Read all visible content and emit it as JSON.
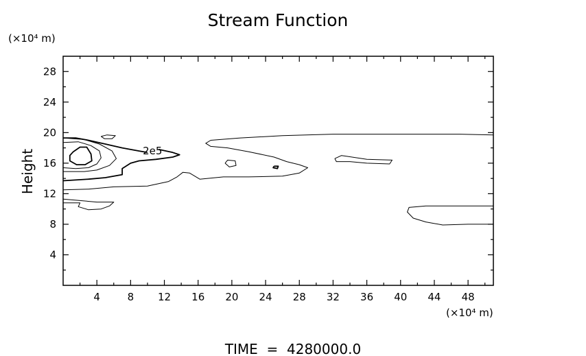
{
  "chart_data": {
    "type": "contour",
    "title": "Stream Function",
    "xlabel": "",
    "ylabel": "Height",
    "x_scale_label": "(×10⁴ m)",
    "y_scale_label": "(×10⁴ m)",
    "xlim": [
      0,
      51
    ],
    "ylim": [
      0,
      30
    ],
    "x_ticks": [
      4,
      8,
      12,
      16,
      20,
      24,
      28,
      32,
      36,
      40,
      44,
      48
    ],
    "y_ticks": [
      4,
      8,
      12,
      16,
      20,
      24,
      28
    ],
    "grid": false,
    "footer": "TIME  =  4280000.0",
    "contour_labels": [
      {
        "text": "2e5",
        "x": 10.6,
        "y": 17.6
      }
    ],
    "contours": [
      {
        "name": "thick-level",
        "width": 1.8,
        "points": [
          [
            0,
            19.3
          ],
          [
            1.5,
            19.3
          ],
          [
            3,
            19
          ],
          [
            5,
            18.5
          ],
          [
            7,
            18
          ],
          [
            9,
            17.6
          ],
          [
            10,
            17.4
          ]
        ]
      },
      {
        "name": "thick-level-b",
        "width": 1.8,
        "points": [
          [
            11.3,
            17.8
          ],
          [
            13,
            17.4
          ],
          [
            13.8,
            17.1
          ],
          [
            13,
            16.8
          ],
          [
            11,
            16.5
          ],
          [
            9,
            16.3
          ],
          [
            8,
            16
          ],
          [
            7,
            15.3
          ],
          [
            7,
            14.5
          ],
          [
            5,
            14.1
          ],
          [
            3,
            13.9
          ],
          [
            0,
            13.7
          ]
        ]
      },
      {
        "name": "inner-cell",
        "width": 1.8,
        "points": [
          [
            1.2,
            17.5
          ],
          [
            2,
            18.1
          ],
          [
            2.8,
            18.1
          ],
          [
            3.3,
            17.2
          ],
          [
            3.4,
            16.3
          ],
          [
            2.6,
            15.8
          ],
          [
            1.6,
            15.8
          ],
          [
            0.8,
            16.3
          ],
          [
            0.8,
            17
          ],
          [
            1.2,
            17.5
          ]
        ]
      },
      {
        "name": "level-a",
        "width": 1,
        "points": [
          [
            0,
            18.7
          ],
          [
            1.8,
            18.8
          ],
          [
            3.3,
            18.3
          ],
          [
            4.3,
            17.6
          ],
          [
            4.5,
            16.7
          ],
          [
            4,
            15.9
          ],
          [
            3,
            15.4
          ],
          [
            1.5,
            15.3
          ],
          [
            0,
            15.4
          ]
        ]
      },
      {
        "name": "level-b",
        "width": 1,
        "points": [
          [
            0,
            19.3
          ],
          [
            2.5,
            19.1
          ],
          [
            4.3,
            18.5
          ],
          [
            5.8,
            17.6
          ],
          [
            6.3,
            16.6
          ],
          [
            5.5,
            15.7
          ],
          [
            4,
            15.1
          ],
          [
            2.5,
            14.9
          ],
          [
            0,
            14.9
          ]
        ]
      },
      {
        "name": "small-top",
        "width": 1,
        "points": [
          [
            4.5,
            19.5
          ],
          [
            5.2,
            19.7
          ],
          [
            6.2,
            19.6
          ],
          [
            5.8,
            19.2
          ],
          [
            4.9,
            19.2
          ],
          [
            4.5,
            19.5
          ]
        ]
      },
      {
        "name": "band-upper",
        "width": 1,
        "points": [
          [
            51,
            19.7
          ],
          [
            47,
            19.8
          ],
          [
            40,
            19.8
          ],
          [
            32,
            19.8
          ],
          [
            26,
            19.6
          ],
          [
            21,
            19.3
          ],
          [
            17.5,
            19
          ],
          [
            16.9,
            18.6
          ],
          [
            17.5,
            18.2
          ],
          [
            19.5,
            18
          ],
          [
            22,
            17.5
          ],
          [
            25,
            16.8
          ],
          [
            26.5,
            16.2
          ],
          [
            28,
            15.8
          ],
          [
            29,
            15.4
          ],
          [
            28,
            14.7
          ],
          [
            26,
            14.3
          ],
          [
            22,
            14.2
          ],
          [
            19,
            14.2
          ],
          [
            16.2,
            13.9
          ],
          [
            15,
            14.7
          ],
          [
            14.2,
            14.8
          ],
          [
            13.5,
            14.2
          ],
          [
            12.5,
            13.6
          ],
          [
            10,
            13
          ],
          [
            6,
            12.9
          ],
          [
            3,
            12.6
          ],
          [
            0,
            12.5
          ]
        ]
      },
      {
        "name": "band-lower",
        "width": 1,
        "points": [
          [
            0,
            11.3
          ],
          [
            2,
            11.1
          ],
          [
            4,
            10.9
          ],
          [
            6,
            10.9
          ],
          [
            5.5,
            10.4
          ],
          [
            4.5,
            10
          ],
          [
            3,
            9.9
          ],
          [
            1.8,
            10.3
          ],
          [
            2,
            10.8
          ],
          [
            0,
            10.8
          ]
        ]
      },
      {
        "name": "ring-20",
        "width": 1,
        "points": [
          [
            19.2,
            16
          ],
          [
            19.5,
            16.4
          ],
          [
            20.4,
            16.3
          ],
          [
            20.5,
            15.7
          ],
          [
            19.7,
            15.5
          ],
          [
            19.2,
            16
          ]
        ]
      },
      {
        "name": "dot-25",
        "width": 1.8,
        "points": [
          [
            25,
            15.6
          ],
          [
            25.5,
            15.6
          ],
          [
            25.4,
            15.3
          ],
          [
            24.9,
            15.4
          ],
          [
            25,
            15.6
          ]
        ]
      },
      {
        "name": "ring-36",
        "width": 1,
        "points": [
          [
            32.2,
            16.6
          ],
          [
            33,
            17
          ],
          [
            36,
            16.5
          ],
          [
            39,
            16.4
          ],
          [
            38.7,
            15.9
          ],
          [
            36,
            16
          ],
          [
            34,
            16.2
          ],
          [
            32.4,
            16.2
          ],
          [
            32.2,
            16.6
          ]
        ]
      },
      {
        "name": "right-lower",
        "width": 1,
        "points": [
          [
            51,
            10.4
          ],
          [
            47,
            10.4
          ],
          [
            43,
            10.4
          ],
          [
            41,
            10.2
          ],
          [
            40.8,
            9.6
          ],
          [
            41.5,
            8.8
          ],
          [
            43,
            8.3
          ],
          [
            45,
            7.9
          ],
          [
            48,
            8
          ],
          [
            51,
            8
          ]
        ]
      }
    ]
  }
}
